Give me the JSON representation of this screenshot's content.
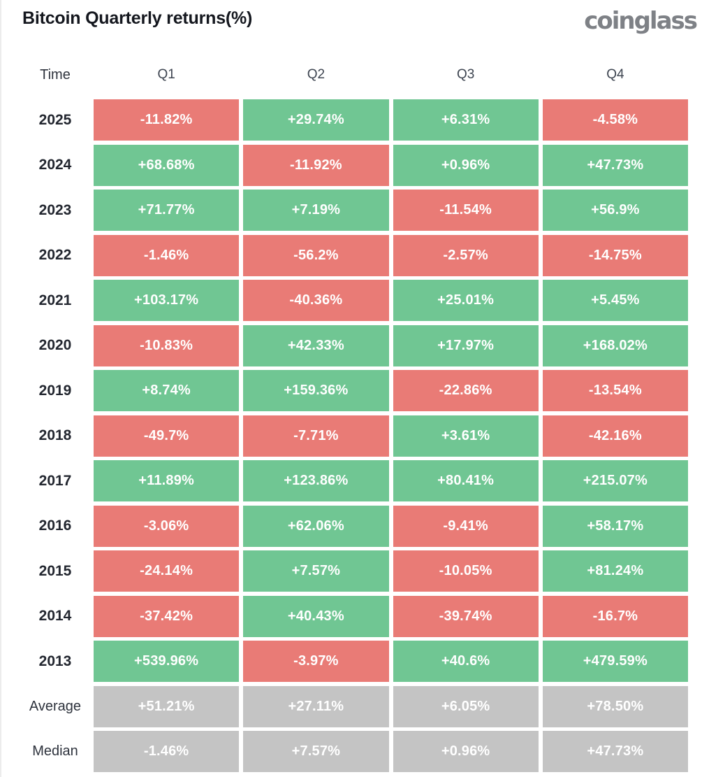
{
  "header": {
    "title": "Bitcoin Quarterly returns(%)",
    "logo": "coinglass"
  },
  "colors": {
    "positive": "#70C693",
    "negative": "#E97B76",
    "neutral": "#C4C4C4"
  },
  "table": {
    "columns": [
      "Time",
      "Q1",
      "Q2",
      "Q3",
      "Q4"
    ],
    "rows": [
      {
        "label": "2025",
        "cells": [
          {
            "text": "-11.82%",
            "tone": "negative"
          },
          {
            "text": "+29.74%",
            "tone": "positive"
          },
          {
            "text": "+6.31%",
            "tone": "positive"
          },
          {
            "text": "-4.58%",
            "tone": "negative"
          }
        ]
      },
      {
        "label": "2024",
        "cells": [
          {
            "text": "+68.68%",
            "tone": "positive"
          },
          {
            "text": "-11.92%",
            "tone": "negative"
          },
          {
            "text": "+0.96%",
            "tone": "positive"
          },
          {
            "text": "+47.73%",
            "tone": "positive"
          }
        ]
      },
      {
        "label": "2023",
        "cells": [
          {
            "text": "+71.77%",
            "tone": "positive"
          },
          {
            "text": "+7.19%",
            "tone": "positive"
          },
          {
            "text": "-11.54%",
            "tone": "negative"
          },
          {
            "text": "+56.9%",
            "tone": "positive"
          }
        ]
      },
      {
        "label": "2022",
        "cells": [
          {
            "text": "-1.46%",
            "tone": "negative"
          },
          {
            "text": "-56.2%",
            "tone": "negative"
          },
          {
            "text": "-2.57%",
            "tone": "negative"
          },
          {
            "text": "-14.75%",
            "tone": "negative"
          }
        ]
      },
      {
        "label": "2021",
        "cells": [
          {
            "text": "+103.17%",
            "tone": "positive"
          },
          {
            "text": "-40.36%",
            "tone": "negative"
          },
          {
            "text": "+25.01%",
            "tone": "positive"
          },
          {
            "text": "+5.45%",
            "tone": "positive"
          }
        ]
      },
      {
        "label": "2020",
        "cells": [
          {
            "text": "-10.83%",
            "tone": "negative"
          },
          {
            "text": "+42.33%",
            "tone": "positive"
          },
          {
            "text": "+17.97%",
            "tone": "positive"
          },
          {
            "text": "+168.02%",
            "tone": "positive"
          }
        ]
      },
      {
        "label": "2019",
        "cells": [
          {
            "text": "+8.74%",
            "tone": "positive"
          },
          {
            "text": "+159.36%",
            "tone": "positive"
          },
          {
            "text": "-22.86%",
            "tone": "negative"
          },
          {
            "text": "-13.54%",
            "tone": "negative"
          }
        ]
      },
      {
        "label": "2018",
        "cells": [
          {
            "text": "-49.7%",
            "tone": "negative"
          },
          {
            "text": "-7.71%",
            "tone": "negative"
          },
          {
            "text": "+3.61%",
            "tone": "positive"
          },
          {
            "text": "-42.16%",
            "tone": "negative"
          }
        ]
      },
      {
        "label": "2017",
        "cells": [
          {
            "text": "+11.89%",
            "tone": "positive"
          },
          {
            "text": "+123.86%",
            "tone": "positive"
          },
          {
            "text": "+80.41%",
            "tone": "positive"
          },
          {
            "text": "+215.07%",
            "tone": "positive"
          }
        ]
      },
      {
        "label": "2016",
        "cells": [
          {
            "text": "-3.06%",
            "tone": "negative"
          },
          {
            "text": "+62.06%",
            "tone": "positive"
          },
          {
            "text": "-9.41%",
            "tone": "negative"
          },
          {
            "text": "+58.17%",
            "tone": "positive"
          }
        ]
      },
      {
        "label": "2015",
        "cells": [
          {
            "text": "-24.14%",
            "tone": "negative"
          },
          {
            "text": "+7.57%",
            "tone": "positive"
          },
          {
            "text": "-10.05%",
            "tone": "negative"
          },
          {
            "text": "+81.24%",
            "tone": "positive"
          }
        ]
      },
      {
        "label": "2014",
        "cells": [
          {
            "text": "-37.42%",
            "tone": "negative"
          },
          {
            "text": "+40.43%",
            "tone": "positive"
          },
          {
            "text": "-39.74%",
            "tone": "negative"
          },
          {
            "text": "-16.7%",
            "tone": "negative"
          }
        ]
      },
      {
        "label": "2013",
        "cells": [
          {
            "text": "+539.96%",
            "tone": "positive"
          },
          {
            "text": "-3.97%",
            "tone": "negative"
          },
          {
            "text": "+40.6%",
            "tone": "positive"
          },
          {
            "text": "+479.59%",
            "tone": "positive"
          }
        ]
      },
      {
        "label": "Average",
        "cells": [
          {
            "text": "+51.21%",
            "tone": "neutral"
          },
          {
            "text": "+27.11%",
            "tone": "neutral"
          },
          {
            "text": "+6.05%",
            "tone": "neutral"
          },
          {
            "text": "+78.50%",
            "tone": "neutral"
          }
        ]
      },
      {
        "label": "Median",
        "cells": [
          {
            "text": "-1.46%",
            "tone": "neutral"
          },
          {
            "text": "+7.57%",
            "tone": "neutral"
          },
          {
            "text": "+0.96%",
            "tone": "neutral"
          },
          {
            "text": "+47.73%",
            "tone": "neutral"
          }
        ]
      }
    ]
  },
  "chart_data": {
    "type": "heatmap",
    "title": "Bitcoin Quarterly returns(%)",
    "columns": [
      "Q1",
      "Q2",
      "Q3",
      "Q4"
    ],
    "rows": [
      "2025",
      "2024",
      "2023",
      "2022",
      "2021",
      "2020",
      "2019",
      "2018",
      "2017",
      "2016",
      "2015",
      "2014",
      "2013",
      "Average",
      "Median"
    ],
    "values_percent": [
      [
        -11.82,
        29.74,
        6.31,
        -4.58
      ],
      [
        68.68,
        -11.92,
        0.96,
        47.73
      ],
      [
        71.77,
        7.19,
        -11.54,
        56.9
      ],
      [
        -1.46,
        -56.2,
        -2.57,
        -14.75
      ],
      [
        103.17,
        -40.36,
        25.01,
        5.45
      ],
      [
        -10.83,
        42.33,
        17.97,
        168.02
      ],
      [
        8.74,
        159.36,
        -22.86,
        -13.54
      ],
      [
        -49.7,
        -7.71,
        3.61,
        -42.16
      ],
      [
        11.89,
        123.86,
        80.41,
        215.07
      ],
      [
        -3.06,
        62.06,
        -9.41,
        58.17
      ],
      [
        -24.14,
        7.57,
        -10.05,
        81.24
      ],
      [
        -37.42,
        40.43,
        -39.74,
        -16.7
      ],
      [
        539.96,
        -3.97,
        40.6,
        479.59
      ],
      [
        51.21,
        27.11,
        6.05,
        78.5
      ],
      [
        -1.46,
        7.57,
        0.96,
        47.73
      ]
    ],
    "color_rule": "green cells = positive return, red cells = negative return, gray cells = Average/Median summary rows",
    "legend": "none",
    "grid": "off"
  }
}
